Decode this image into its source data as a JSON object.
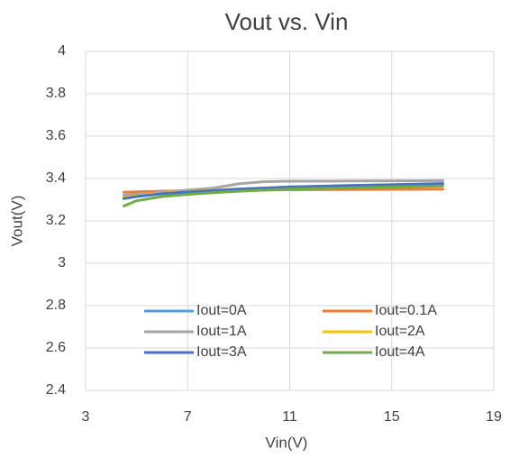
{
  "chart_data": {
    "type": "line",
    "title": "Vout vs. Vin",
    "x_label": "Vin(V)",
    "y_label": "Vout(V)",
    "x": [
      4.5,
      5,
      6,
      7,
      8,
      9,
      10,
      11,
      13,
      15,
      17
    ],
    "series": [
      {
        "name": "Iout=0A",
        "color": "#5b9bd5",
        "values": [
          3.32,
          3.325,
          3.33,
          3.34,
          3.345,
          3.35,
          3.355,
          3.36,
          3.365,
          3.37,
          3.375
        ]
      },
      {
        "name": "Iout=0.1A",
        "color": "#ed7d31",
        "values": [
          3.335,
          3.337,
          3.34,
          3.342,
          3.344,
          3.345,
          3.346,
          3.347,
          3.348,
          3.349,
          3.35
        ]
      },
      {
        "name": "Iout=1A",
        "color": "#a5a5a5",
        "values": [
          3.315,
          3.325,
          3.335,
          3.345,
          3.355,
          3.375,
          3.385,
          3.387,
          3.388,
          3.389,
          3.39
        ]
      },
      {
        "name": "Iout=2A",
        "color": "#ffc000",
        "values": [
          3.31,
          3.318,
          3.33,
          3.338,
          3.345,
          3.35,
          3.355,
          3.36,
          3.365,
          3.37,
          3.375
        ]
      },
      {
        "name": "Iout=3A",
        "color": "#4472c4",
        "values": [
          3.305,
          3.315,
          3.328,
          3.336,
          3.343,
          3.35,
          3.355,
          3.36,
          3.366,
          3.371,
          3.376
        ]
      },
      {
        "name": "Iout=4A",
        "color": "#70ad47",
        "values": [
          3.27,
          3.295,
          3.315,
          3.325,
          3.333,
          3.34,
          3.345,
          3.35,
          3.355,
          3.36,
          3.365
        ]
      }
    ],
    "xlim": [
      3,
      19
    ],
    "xticks": [
      3,
      7,
      11,
      15,
      19
    ],
    "ylim": [
      2.4,
      4
    ],
    "yticks": [
      2.4,
      2.6,
      2.8,
      3,
      3.2,
      3.4,
      3.6,
      3.8,
      4
    ],
    "grid": true,
    "legend": "bottom"
  }
}
